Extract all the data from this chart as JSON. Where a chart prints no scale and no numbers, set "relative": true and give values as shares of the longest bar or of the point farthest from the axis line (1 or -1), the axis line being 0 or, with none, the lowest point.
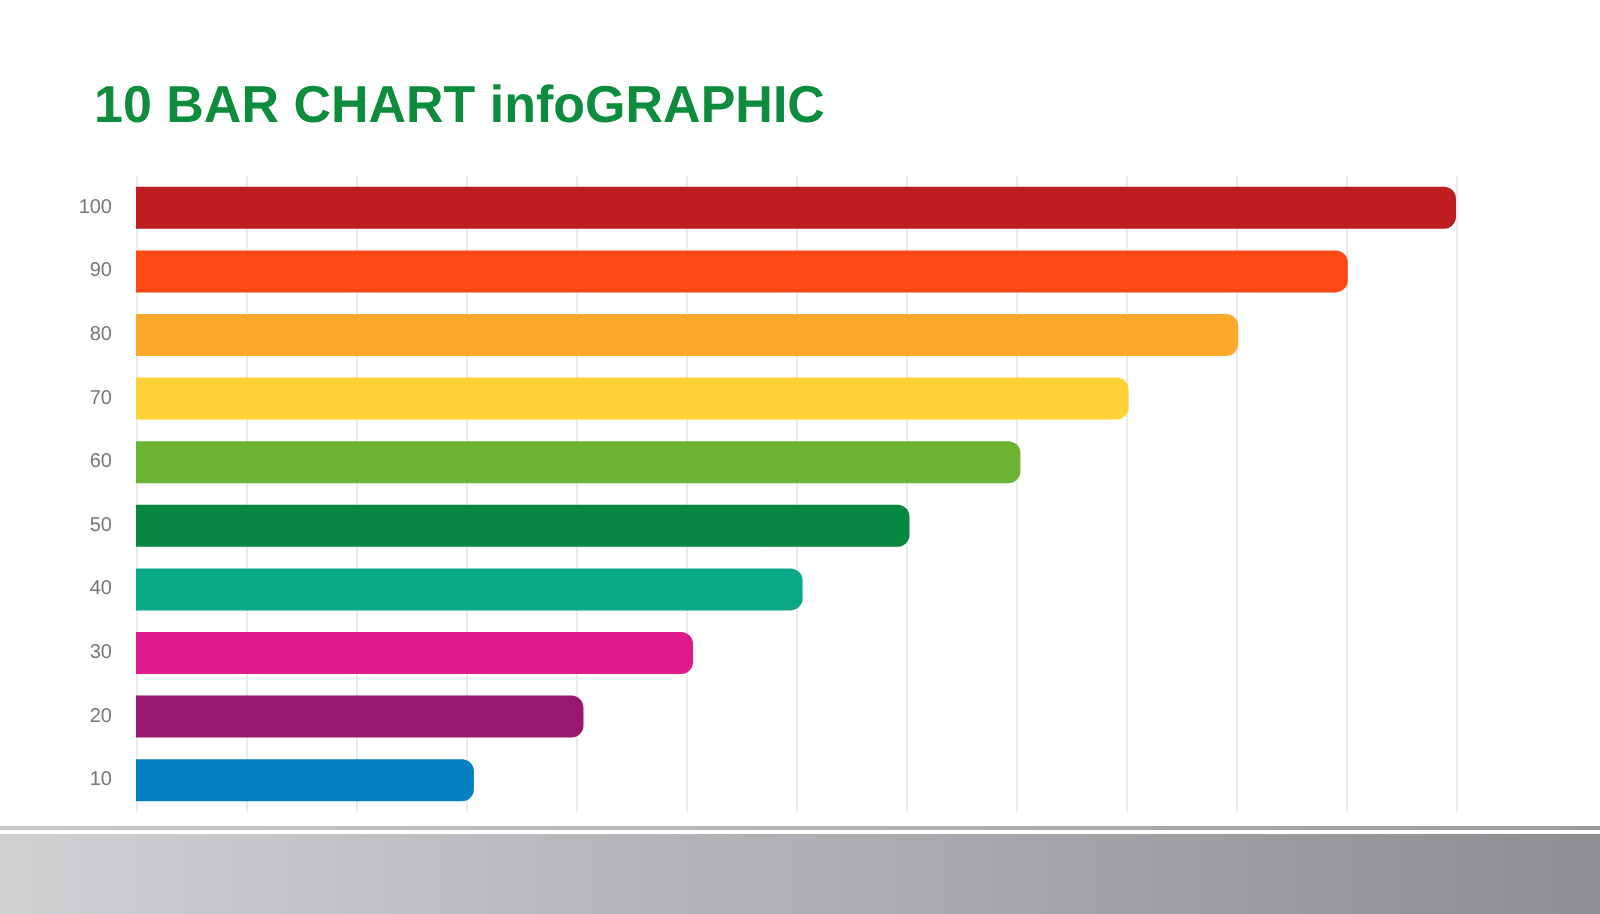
{
  "chart_data": {
    "type": "bar",
    "title": "10 BAR CHART infoGRAPHIC",
    "orientation": "horizontal",
    "relative": true,
    "categories": [
      "100",
      "90",
      "80",
      "70",
      "60",
      "50",
      "40",
      "30",
      "20",
      "10"
    ],
    "values": [
      1,
      0.918,
      0.835,
      0.752,
      0.67,
      0.586,
      0.505,
      0.422,
      0.339,
      0.256
    ],
    "colors": [
      "#be1e22",
      "#fd4a15",
      "#fca82a",
      "#fed136",
      "#6cb233",
      "#068740",
      "#0aa887",
      "#e0198c",
      "#981870",
      "#0581c2"
    ],
    "grid": "x"
  }
}
